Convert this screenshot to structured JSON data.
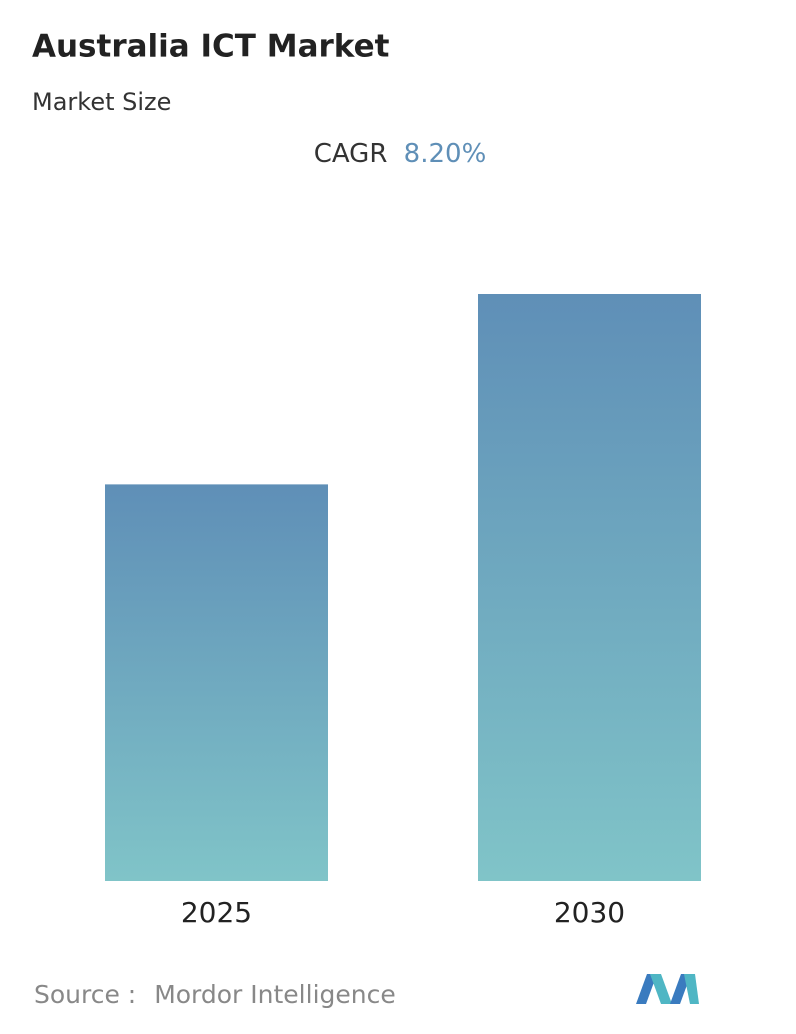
{
  "chart_data": {
    "type": "bar",
    "title": "Australia ICT Market",
    "subtitle": "Market Size",
    "cagr_label": "CAGR",
    "cagr_value": "8.20%",
    "categories": [
      "2025",
      "2030"
    ],
    "values": [
      100,
      148
    ],
    "color_top": "#5f8fb7",
    "color_bottom": "#80c4c8",
    "source_label": "Source :",
    "source": "Mordor Intelligence"
  }
}
